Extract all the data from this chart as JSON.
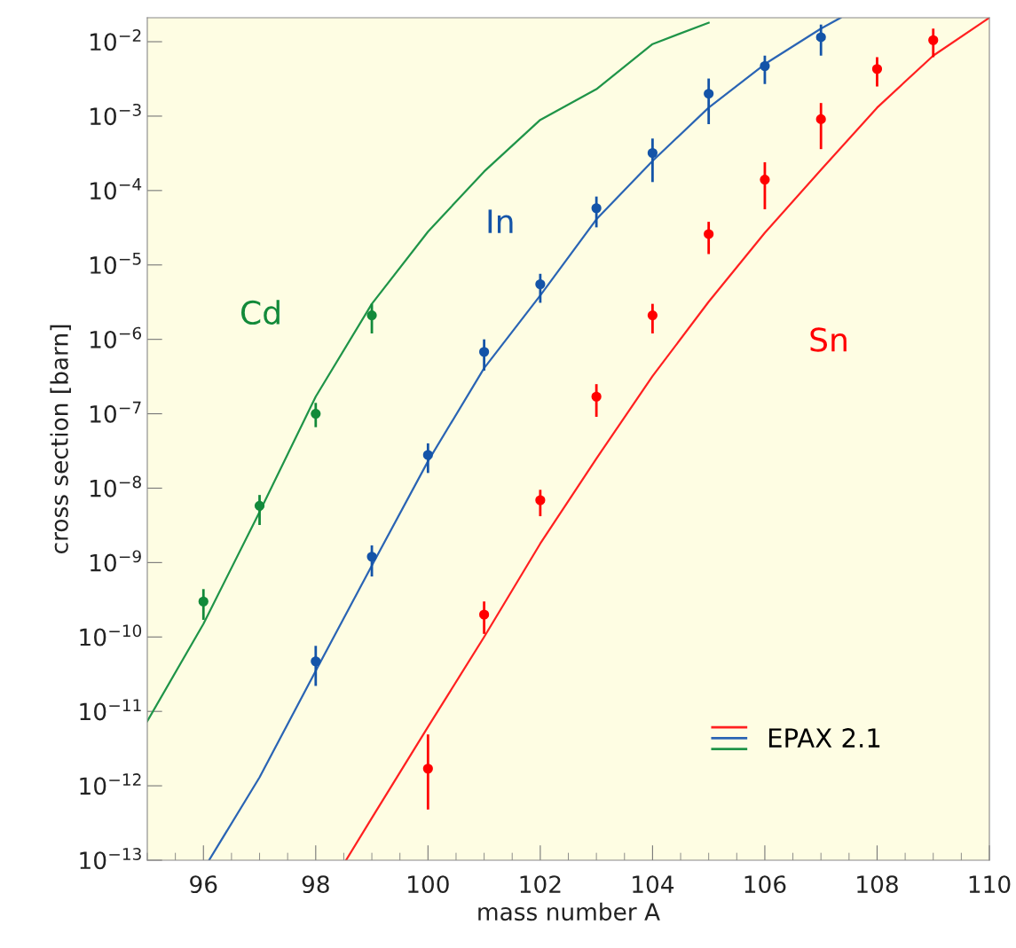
{
  "chart_data": {
    "type": "line",
    "xlabel": "mass number A",
    "ylabel": "cross section [barn]",
    "log": "y",
    "xlim": [
      95,
      110
    ],
    "xticks": [
      96,
      98,
      100,
      102,
      104,
      106,
      108,
      110
    ],
    "ylim": [
      1e-13,
      0.021
    ],
    "yticks": [
      {
        "value": 1e-13,
        "label": "10$^{−13}$"
      },
      {
        "value": 1e-12,
        "label": "10$^{−12}$"
      },
      {
        "value": 1e-11,
        "label": "10$^{−11}$"
      },
      {
        "value": 1e-10,
        "label": "10$^{−10}$"
      },
      {
        "value": 1e-09,
        "label": "10$^{−9}$"
      },
      {
        "value": 1e-08,
        "label": "10$^{−8}$"
      },
      {
        "value": 1e-07,
        "label": "10$^{−7}$"
      },
      {
        "value": 1e-06,
        "label": "10$^{−6}$"
      },
      {
        "value": 1e-05,
        "label": "10$^{−5}$"
      },
      {
        "value": 0.0001,
        "label": "10$^{−4}$"
      },
      {
        "value": 0.001,
        "label": "10$^{−3}$"
      },
      {
        "value": 0.01,
        "label": "10$^{−2}$"
      }
    ],
    "grid": false,
    "legend": "bottom right",
    "line_style": "solid",
    "series": [
      {
        "name": "EPAX 2.1",
        "color": "#ff2020",
        "x": [
          98.54,
          99,
          100,
          101,
          102,
          103,
          104,
          105,
          106,
          107,
          108,
          109,
          110
        ],
        "values": [
          1e-13,
          3.7e-13,
          6.2e-12,
          1e-10,
          1.8e-09,
          2.5e-08,
          3.2e-07,
          3.2e-06,
          2.7e-05,
          0.00019,
          0.0013,
          0.0065,
          0.021
        ]
      },
      {
        "color": "#2a64b4",
        "x": [
          96.1,
          97,
          98,
          99,
          100,
          101,
          102,
          103,
          104,
          105,
          106,
          107,
          107.35
        ],
        "values": [
          1e-13,
          1.3e-12,
          3.5e-11,
          9.1e-10,
          2.3e-08,
          4.1e-07,
          3.9e-06,
          4.1e-05,
          0.00025,
          0.0013,
          0.005,
          0.015,
          0.021
        ]
      },
      {
        "color": "#1f9448",
        "x": [
          95,
          96,
          97,
          98,
          99,
          100,
          101,
          102,
          103,
          104,
          105
        ],
        "values": [
          7.4e-12,
          1.5e-10,
          4.8e-09,
          1.7e-07,
          3e-06,
          2.8e-05,
          0.00018,
          0.00089,
          0.0023,
          0.0093,
          0.018
        ]
      },
      {
        "type": "scatter",
        "name": "Cd",
        "color": "#138a3a",
        "marker": "circle",
        "x": [
          96,
          97,
          98,
          99
        ],
        "values": [
          3e-10,
          5.8e-09,
          1e-07,
          2.1e-06
        ],
        "errors": [
          [
            1.7e-10,
            4.4e-10
          ],
          [
            3.2e-09,
            8.1e-09
          ],
          [
            6.6e-08,
            1.4e-07
          ],
          [
            1.2e-06,
            3e-06
          ]
        ]
      },
      {
        "type": "scatter",
        "name": "In",
        "color": "#1454a8",
        "marker": "circle",
        "x": [
          98,
          99,
          100,
          101,
          102,
          103,
          104,
          105,
          106,
          107
        ],
        "values": [
          4.7e-11,
          1.2e-09,
          2.8e-08,
          6.8e-07,
          5.5e-06,
          5.8e-05,
          0.00032,
          0.002,
          0.0047,
          0.0115
        ],
        "errors": [
          [
            2.2e-11,
            7.6e-11
          ],
          [
            6.5e-10,
            1.7e-09
          ],
          [
            1.6e-08,
            4e-08
          ],
          [
            3.8e-07,
            1e-06
          ],
          [
            3.1e-06,
            7.6e-06
          ],
          [
            3.2e-05,
            8.3e-05
          ],
          [
            0.00013,
            0.0005
          ],
          [
            0.00078,
            0.0032
          ],
          [
            0.0027,
            0.0065
          ],
          [
            0.0065,
            0.017
          ]
        ]
      },
      {
        "type": "scatter",
        "name": "Sn",
        "color": "#ff0000",
        "marker": "circle",
        "x": [
          100,
          101,
          102,
          103,
          104,
          105,
          106,
          107,
          108,
          109
        ],
        "values": [
          1.7e-12,
          2e-10,
          6.9e-09,
          1.7e-07,
          2.1e-06,
          2.6e-05,
          0.00014,
          0.00091,
          0.0043,
          0.0105
        ],
        "errors": [
          [
            4.8e-13,
            4.9e-12
          ],
          [
            1.1e-10,
            3e-10
          ],
          [
            4.2e-09,
            9.5e-09
          ],
          [
            9.1e-08,
            2.5e-07
          ],
          [
            1.2e-06,
            3e-06
          ],
          [
            1.4e-05,
            3.8e-05
          ],
          [
            5.6e-05,
            0.00024
          ],
          [
            0.00036,
            0.0015
          ],
          [
            0.0025,
            0.0062
          ],
          [
            0.0062,
            0.015
          ]
        ]
      }
    ]
  }
}
